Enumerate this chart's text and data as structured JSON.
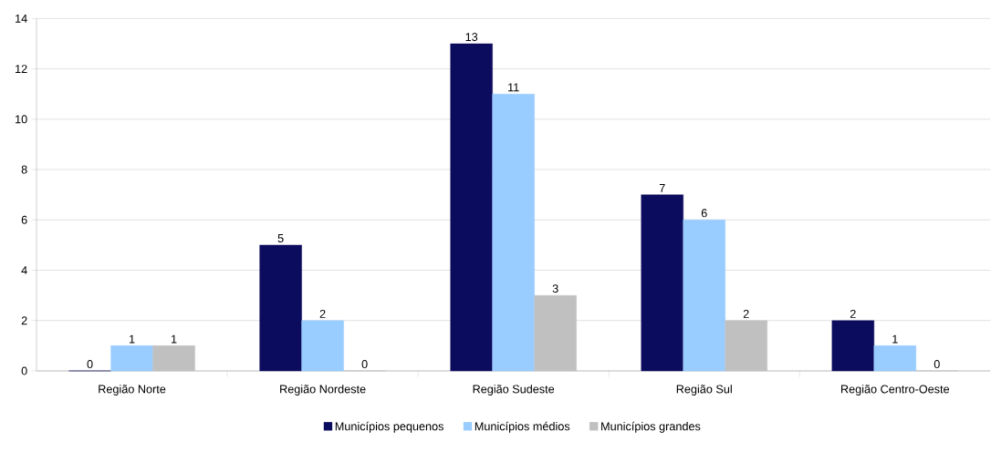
{
  "chart_data": {
    "type": "bar",
    "categories": [
      "Região Norte",
      "Região Nordeste",
      "Região Sudeste",
      "Região Sul",
      "Região Centro-Oeste"
    ],
    "series": [
      {
        "name": "Municípios pequenos",
        "color": "#0c0c5e",
        "values": [
          0,
          5,
          13,
          7,
          2
        ]
      },
      {
        "name": "Municípios médios",
        "color": "#99ccff",
        "values": [
          1,
          2,
          11,
          6,
          1
        ]
      },
      {
        "name": "Municípios grandes",
        "color": "#c0c0c0",
        "values": [
          1,
          0,
          3,
          2,
          0
        ]
      }
    ],
    "ylim": [
      0,
      14
    ],
    "yticks": [
      0,
      2,
      4,
      6,
      8,
      10,
      12,
      14
    ],
    "grid": "y",
    "legend": "bottom",
    "data_labels": true
  }
}
